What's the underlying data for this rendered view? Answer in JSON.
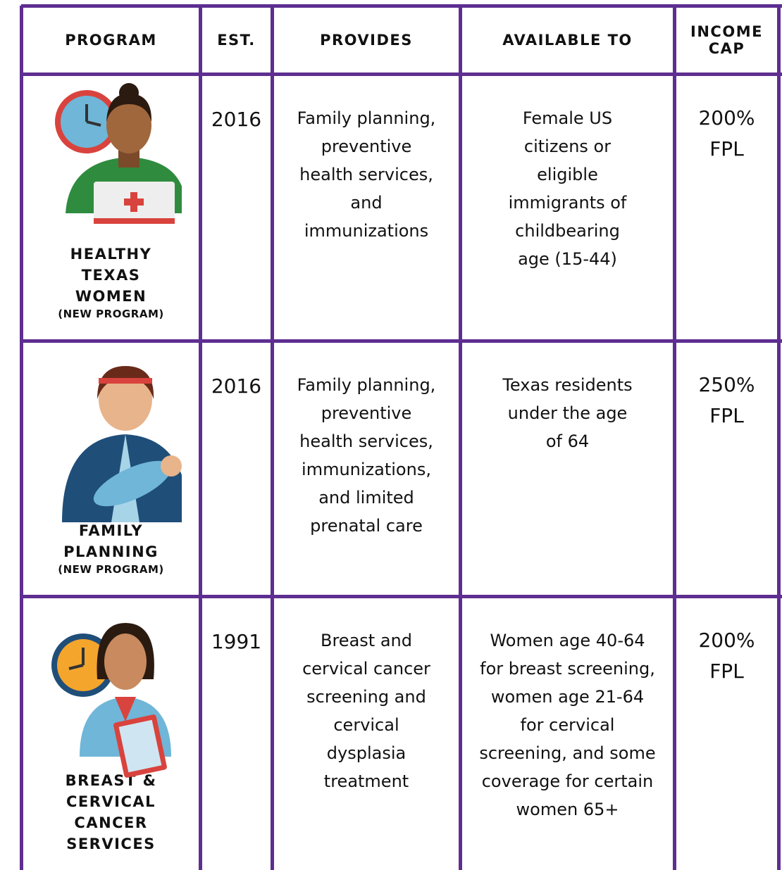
{
  "header": {
    "columns": [
      "PROGRAM",
      "EST.",
      "PROVIDES",
      "AVAILABLE TO",
      "INCOME CAP"
    ]
  },
  "rows": [
    {
      "program": "HEALTHY TEXAS WOMEN",
      "note": "(NEW PROGRAM)",
      "est": "2016",
      "provides": "Family planning, preventive health services, and immunizations",
      "available_to": "Female US citizens or eligible immigrants of childbearing age (15-44)",
      "income_cap": "200% FPL"
    },
    {
      "program": "FAMILY PLANNING",
      "note": "(NEW PROGRAM)",
      "est": "2016",
      "provides": "Family planning, preventive health services, immunizations, and limited prenatal care",
      "available_to": "Texas residents under the age of 64",
      "income_cap": "250% FPL"
    },
    {
      "program": "BREAST & CERVICAL CANCER SERVICES",
      "est": "1991",
      "provides": "Breast and cervical cancer screening and cervical dysplasia treatment",
      "available_to": "Women age 40-64 for breast screening, women age 21-64 for cervical screening, and some coverage for certain women 65+",
      "income_cap": "200% FPL"
    }
  ]
}
